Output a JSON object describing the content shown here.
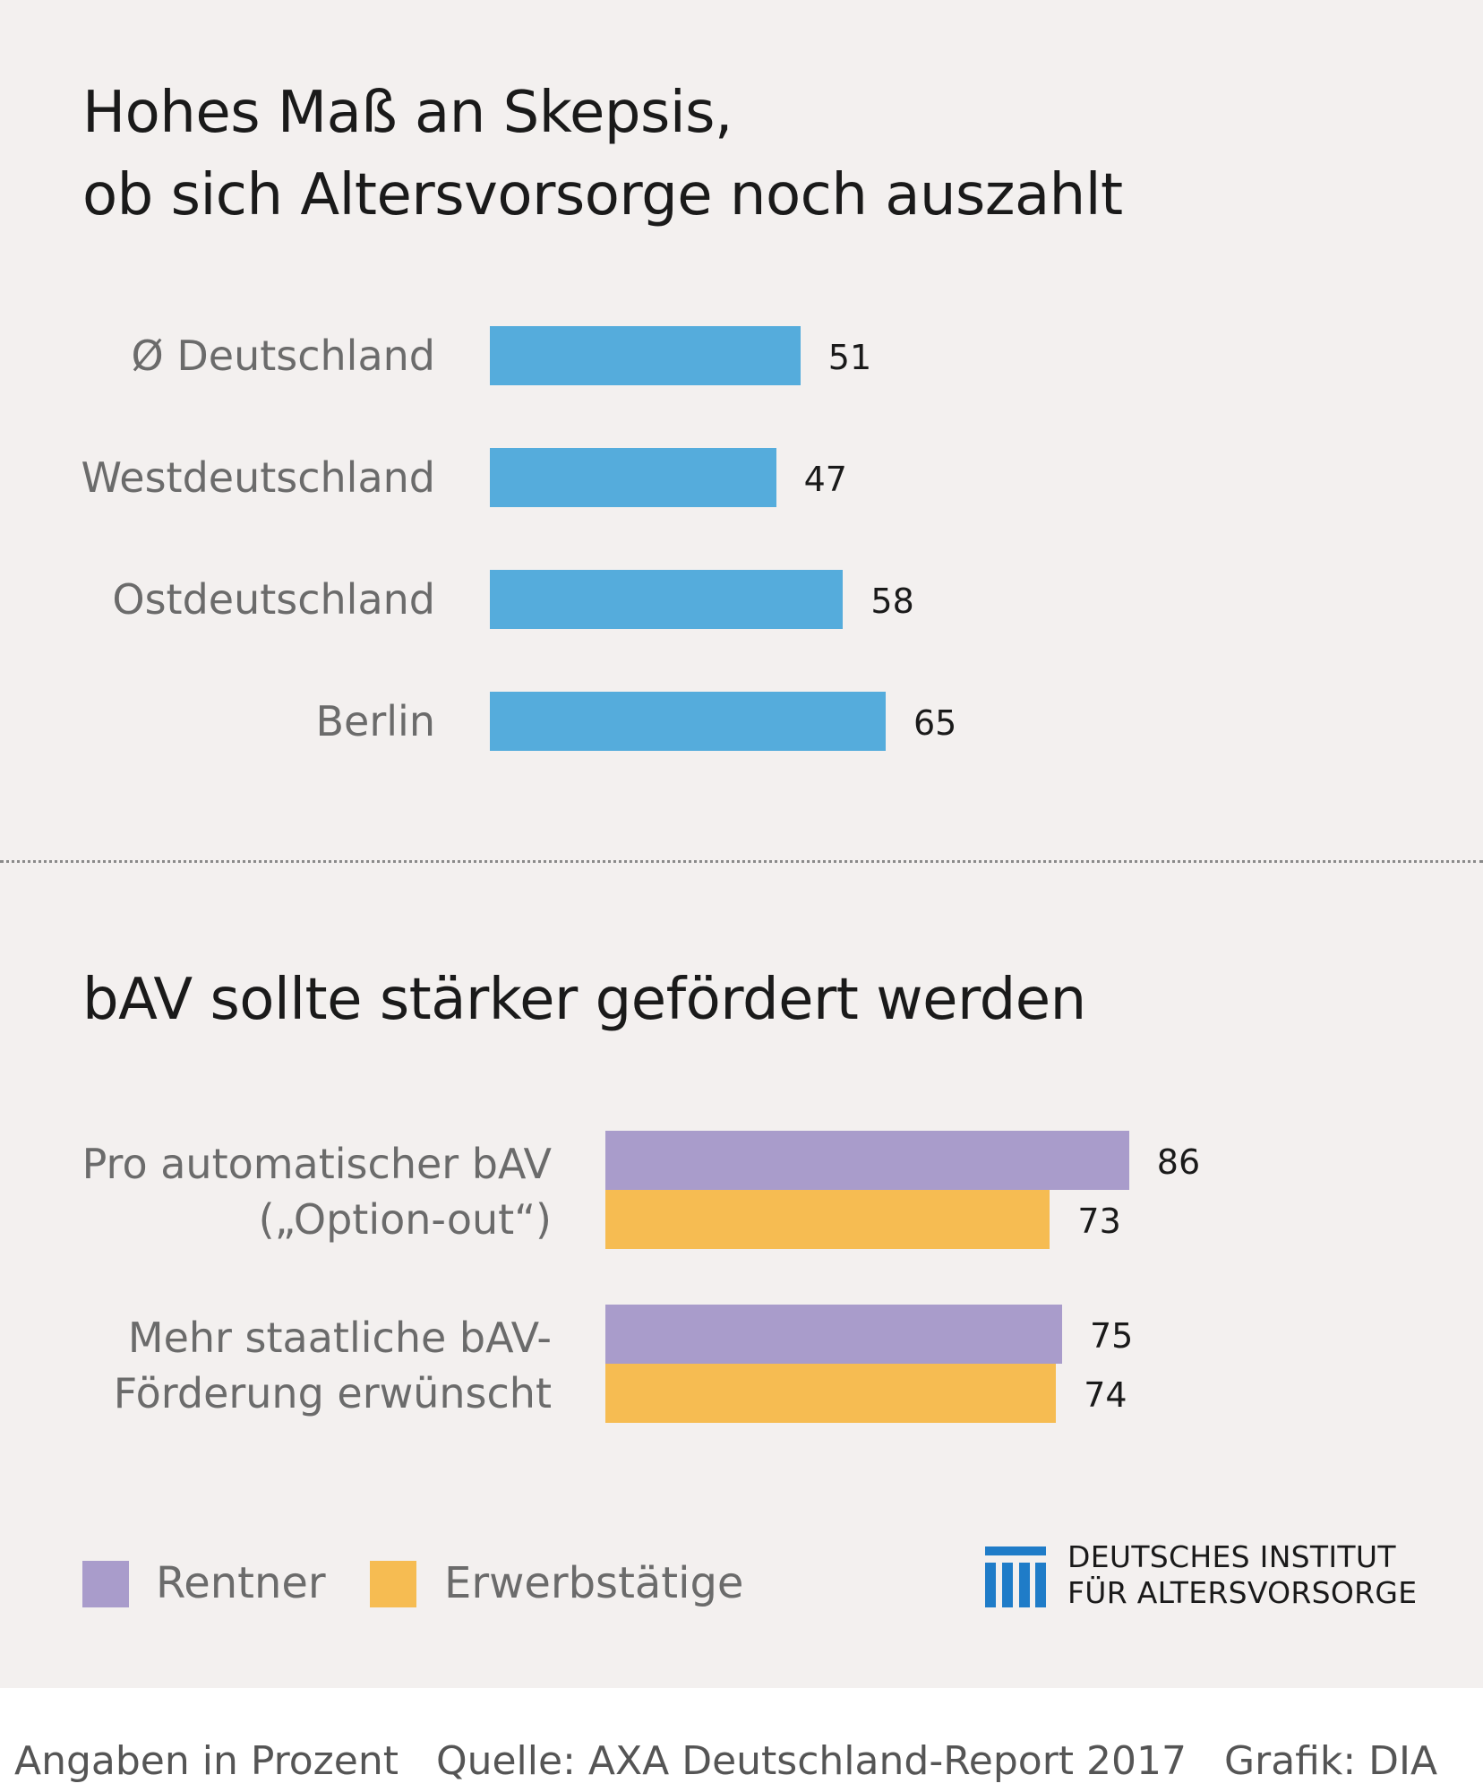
{
  "chart_data": [
    {
      "type": "bar",
      "orientation": "horizontal",
      "title_lines": [
        "Hohes Maß an Skepsis,",
        "ob sich Altersvorsorge noch auszahlt"
      ],
      "categories": [
        "Ø Deutschland",
        "Westdeutschland",
        "Ostdeutschland",
        "Berlin"
      ],
      "values": [
        51,
        47,
        58,
        65
      ],
      "color": "#55acdc",
      "unit": "Prozent"
    },
    {
      "type": "bar",
      "orientation": "horizontal",
      "title": "bAV sollte stärker gefördert werden",
      "categories": [
        {
          "lines": [
            "Pro automatischer bAV",
            "(„Option-out“)"
          ]
        },
        {
          "lines": [
            "Mehr staatliche bAV-",
            "Förderung erwünscht"
          ]
        }
      ],
      "series": [
        {
          "name": "Rentner",
          "color": "#a99ccb",
          "values": [
            86,
            75
          ]
        },
        {
          "name": "Erwerbstätige",
          "color": "#f6bc52",
          "values": [
            73,
            74
          ]
        }
      ],
      "legend": "bottom-left",
      "unit": "Prozent"
    }
  ],
  "logo": {
    "lines": [
      "DEUTSCHES INSTITUT",
      "FÜR ALTERSVORSORGE"
    ],
    "icon": "dia-columns-icon",
    "color": "#1f7cc8"
  },
  "footer": {
    "note": "Angaben in Prozent",
    "source": "Quelle: AXA Deutschland-Report 2017",
    "credit": "Grafik: DIA"
  },
  "colors": {
    "background": "#f3f0ef",
    "label_gray": "#6b6b6b",
    "title": "#1a1a1a"
  }
}
